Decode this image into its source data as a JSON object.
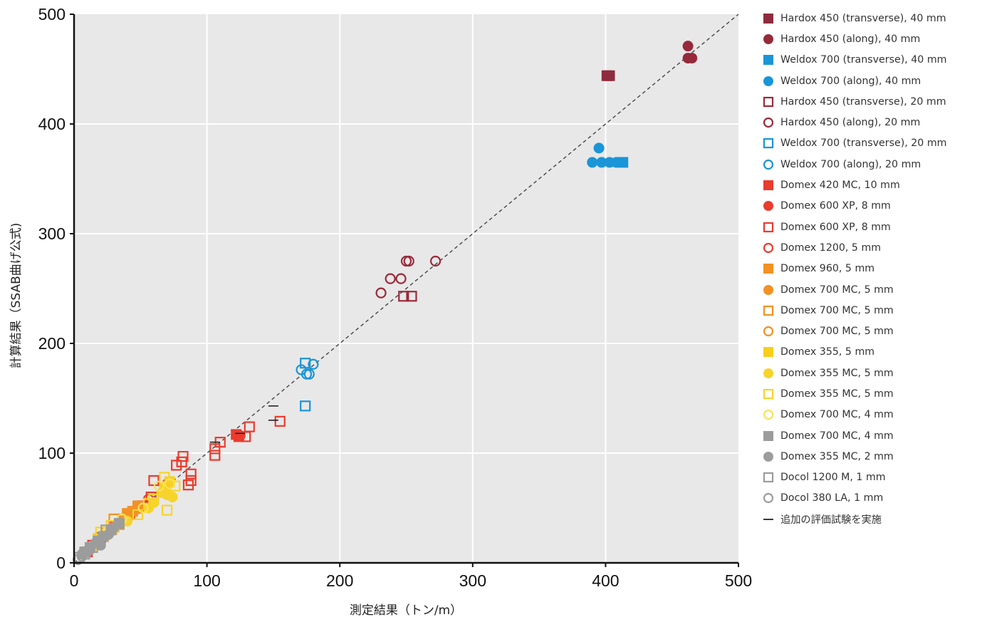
{
  "chart_data": {
    "type": "scatter",
    "xlabel": "測定結果（トン/m）",
    "ylabel": "計算結果（SSAB曲げ公式)",
    "xlim": [
      0,
      500
    ],
    "ylim": [
      0,
      500
    ],
    "x_ticks": [
      "0",
      "100",
      "200",
      "300",
      "400",
      "500"
    ],
    "y_ticks": [
      "0",
      "100",
      "200",
      "300",
      "400",
      "500"
    ],
    "grid": true,
    "reference_line": "y = x (dashed)",
    "legend_position": "right",
    "series": [
      {
        "name": "Hardox 450 (transverse), 40 mm",
        "marker": "square",
        "filled": true,
        "color": "#8e2c3d",
        "points": [
          [
            401,
            444
          ],
          [
            403,
            444
          ]
        ]
      },
      {
        "name": "Hardox 450 (along), 40 mm",
        "marker": "circle",
        "filled": true,
        "color": "#96293a",
        "points": [
          [
            462,
            471
          ],
          [
            462,
            460
          ],
          [
            465,
            460
          ]
        ]
      },
      {
        "name": "Weldox 700 (transverse), 40 mm",
        "marker": "square",
        "filled": true,
        "color": "#1a95d8",
        "points": [
          [
            413,
            365
          ]
        ]
      },
      {
        "name": "Weldox 700 (along), 40 mm",
        "marker": "circle",
        "filled": true,
        "color": "#1a95d8",
        "points": [
          [
            395,
            378
          ],
          [
            390,
            365
          ],
          [
            397,
            365
          ],
          [
            403,
            365
          ],
          [
            408,
            365
          ]
        ]
      },
      {
        "name": "Hardox 450 (transverse), 20 mm",
        "marker": "square",
        "filled": false,
        "color": "#9a2a3a",
        "points": [
          [
            248,
            243
          ],
          [
            254,
            243
          ]
        ]
      },
      {
        "name": "Hardox 450 (along), 20 mm",
        "marker": "circle",
        "filled": false,
        "color": "#9a2a3a",
        "points": [
          [
            231,
            246
          ],
          [
            238,
            259
          ],
          [
            246,
            259
          ],
          [
            250,
            275
          ],
          [
            252,
            275
          ],
          [
            272,
            275
          ]
        ]
      },
      {
        "name": "Weldox 700 (transverse), 20 mm",
        "marker": "square",
        "filled": false,
        "color": "#1a95d8",
        "points": [
          [
            174,
            143
          ],
          [
            174,
            182
          ]
        ]
      },
      {
        "name": "Weldox 700 (along), 20 mm",
        "marker": "circle",
        "filled": false,
        "color": "#1a95d8",
        "points": [
          [
            171,
            176
          ],
          [
            175,
            172
          ],
          [
            177,
            172
          ],
          [
            180,
            181
          ]
        ]
      },
      {
        "name": "Domex 420 MC, 10 mm",
        "marker": "square",
        "filled": true,
        "color": "#ea3b2d",
        "points": [
          [
            122,
            117
          ],
          [
            124,
            115
          ]
        ]
      },
      {
        "name": "Domex 600 XP, 8 mm",
        "marker": "circle",
        "filled": true,
        "color": "#ea3b2d",
        "points": [
          [
            125,
            116
          ]
        ]
      },
      {
        "name": "Domex 600 XP, 8 mm",
        "marker": "square",
        "filled": false,
        "color": "#ea3b2d",
        "points": [
          [
            155,
            129
          ],
          [
            132,
            124
          ],
          [
            129,
            115
          ],
          [
            110,
            110
          ],
          [
            106,
            104
          ],
          [
            106,
            98
          ],
          [
            82,
            97
          ],
          [
            81,
            92
          ],
          [
            77,
            89
          ],
          [
            88,
            81
          ],
          [
            88,
            75
          ],
          [
            86,
            71
          ],
          [
            60,
            75
          ],
          [
            58,
            60
          ],
          [
            52,
            52
          ],
          [
            48,
            50
          ],
          [
            42,
            44
          ],
          [
            38,
            40
          ],
          [
            30,
            33
          ],
          [
            20,
            23
          ],
          [
            14,
            16
          ],
          [
            10,
            10
          ]
        ]
      },
      {
        "name": "Domex 1200, 5 mm",
        "marker": "circle",
        "filled": false,
        "color": "#ea3b2d",
        "points": [
          [
            70,
            72
          ],
          [
            56,
            58
          ]
        ]
      },
      {
        "name": "Domex 960, 5 mm",
        "marker": "square",
        "filled": true,
        "color": "#f39124",
        "points": [
          [
            48,
            52
          ],
          [
            44,
            47
          ],
          [
            40,
            45
          ]
        ]
      },
      {
        "name": "Domex 700 MC, 5 mm",
        "marker": "circle",
        "filled": true,
        "color": "#f39124",
        "points": [
          [
            46,
            48
          ],
          [
            42,
            45
          ],
          [
            36,
            38
          ]
        ]
      },
      {
        "name": "Domex 700 MC, 5 mm",
        "marker": "square",
        "filled": false,
        "color": "#f39124",
        "points": [
          [
            30,
            40
          ],
          [
            34,
            35
          ],
          [
            25,
            28
          ]
        ]
      },
      {
        "name": "Domex 700 MC, 5 mm",
        "marker": "circle",
        "filled": false,
        "color": "#f39124",
        "points": [
          [
            40,
            42
          ],
          [
            32,
            34
          ]
        ]
      },
      {
        "name": "Domex 355, 5 mm",
        "marker": "square",
        "filled": true,
        "color": "#f7cf1b",
        "points": [
          [
            72,
            74
          ],
          [
            68,
            68
          ],
          [
            18,
            22
          ]
        ]
      },
      {
        "name": "Domex 355 MC, 5 mm",
        "marker": "circle",
        "filled": true,
        "color": "#f7d42a",
        "points": [
          [
            70,
            62
          ],
          [
            66,
            64
          ],
          [
            74,
            60
          ],
          [
            60,
            55
          ],
          [
            56,
            50
          ],
          [
            40,
            38
          ],
          [
            30,
            30
          ],
          [
            24,
            24
          ],
          [
            16,
            16
          ]
        ]
      },
      {
        "name": "Domex 355 MC, 5 mm",
        "marker": "square",
        "filled": false,
        "color": "#f7d42a",
        "points": [
          [
            68,
            78
          ],
          [
            76,
            70
          ],
          [
            70,
            48
          ],
          [
            60,
            58
          ],
          [
            56,
            54
          ],
          [
            48,
            44
          ],
          [
            28,
            34
          ],
          [
            20,
            28
          ]
        ]
      },
      {
        "name": "Domex 700 MC, 4 mm",
        "marker": "circle",
        "filled": false,
        "color": "#f7e25c",
        "points": [
          [
            64,
            70
          ],
          [
            72,
            72
          ],
          [
            52,
            50
          ],
          [
            36,
            40
          ],
          [
            22,
            26
          ],
          [
            14,
            14
          ]
        ]
      },
      {
        "name": "Domex 700 MC, 4 mm",
        "marker": "square",
        "filled": true,
        "color": "#9c9c9c",
        "points": [
          [
            34,
            36
          ],
          [
            28,
            30
          ],
          [
            22,
            24
          ],
          [
            18,
            20
          ],
          [
            12,
            14
          ],
          [
            8,
            10
          ]
        ]
      },
      {
        "name": "Domex 355 MC, 2 mm",
        "marker": "circle",
        "filled": true,
        "color": "#9c9c9c",
        "points": [
          [
            30,
            32
          ],
          [
            26,
            26
          ],
          [
            20,
            16
          ],
          [
            16,
            18
          ],
          [
            10,
            10
          ],
          [
            6,
            8
          ]
        ]
      },
      {
        "name": "Docol 1200 M, 1 mm",
        "marker": "square",
        "filled": false,
        "color": "#9c9c9c",
        "points": [
          [
            24,
            30
          ],
          [
            14,
            14
          ],
          [
            8,
            8
          ],
          [
            4,
            5
          ]
        ]
      },
      {
        "name": "Docol 380 LA, 1 mm",
        "marker": "circle",
        "filled": false,
        "color": "#9c9c9c",
        "points": [
          [
            12,
            12
          ],
          [
            6,
            6
          ],
          [
            3,
            3
          ]
        ]
      }
    ],
    "additional_test_note": "追加の評価試験を実施",
    "additional_test_marks": [
      [
        106,
        110
      ],
      [
        150,
        143
      ],
      [
        150,
        130
      ],
      [
        125,
        118
      ]
    ]
  }
}
